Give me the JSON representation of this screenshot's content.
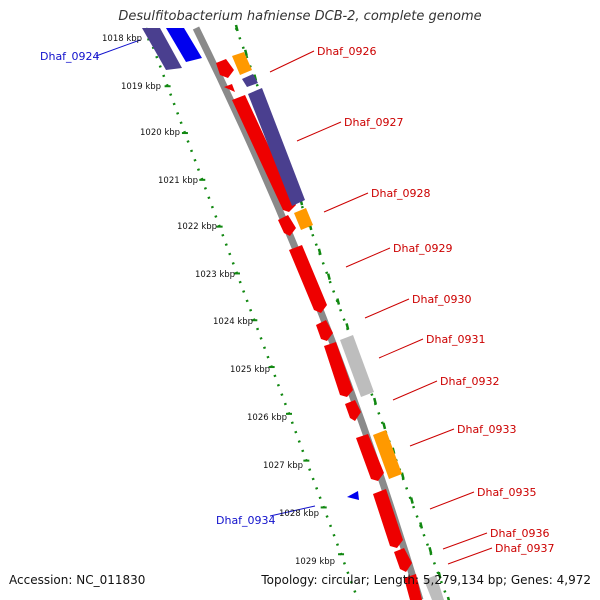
{
  "title": "Desulfitobacterium hafniense DCB-2, complete genome",
  "footer": {
    "accession": "Accession: NC_011830",
    "summary": "Topology: circular; Length: 5,279,134 bp; Genes: 4,972"
  },
  "ruler_ticks": [
    "1018 kbp",
    "1019 kbp",
    "1020 kbp",
    "1021 kbp",
    "1022 kbp",
    "1023 kbp",
    "1024 kbp",
    "1025 kbp",
    "1026 kbp",
    "1027 kbp",
    "1028 kbp",
    "1029 kbp"
  ],
  "gene_labels": [
    {
      "text": "Dhaf_0924",
      "color": "#1111cc"
    },
    {
      "text": "Dhaf_0926",
      "color": "#cc0000"
    },
    {
      "text": "Dhaf_0927",
      "color": "#cc0000"
    },
    {
      "text": "Dhaf_0928",
      "color": "#cc0000"
    },
    {
      "text": "Dhaf_0929",
      "color": "#cc0000"
    },
    {
      "text": "Dhaf_0930",
      "color": "#cc0000"
    },
    {
      "text": "Dhaf_0931",
      "color": "#cc0000"
    },
    {
      "text": "Dhaf_0932",
      "color": "#cc0000"
    },
    {
      "text": "Dhaf_0933",
      "color": "#cc0000"
    },
    {
      "text": "Dhaf_0934",
      "color": "#1111cc"
    },
    {
      "text": "Dhaf_0935",
      "color": "#cc0000"
    },
    {
      "text": "Dhaf_0936",
      "color": "#cc0000"
    },
    {
      "text": "Dhaf_0937",
      "color": "#cc0000"
    }
  ],
  "colors": {
    "backbone": "#8a8a8a",
    "tick_green": "#118811",
    "cds_red": "#ee0000",
    "cds_blue": "#0000ee",
    "cds_purple": "#4a3f8f",
    "cds_orange": "#ff9900",
    "cds_gray": "#bdbdbd",
    "label_red": "#cc0000",
    "label_blue": "#1111cc"
  }
}
